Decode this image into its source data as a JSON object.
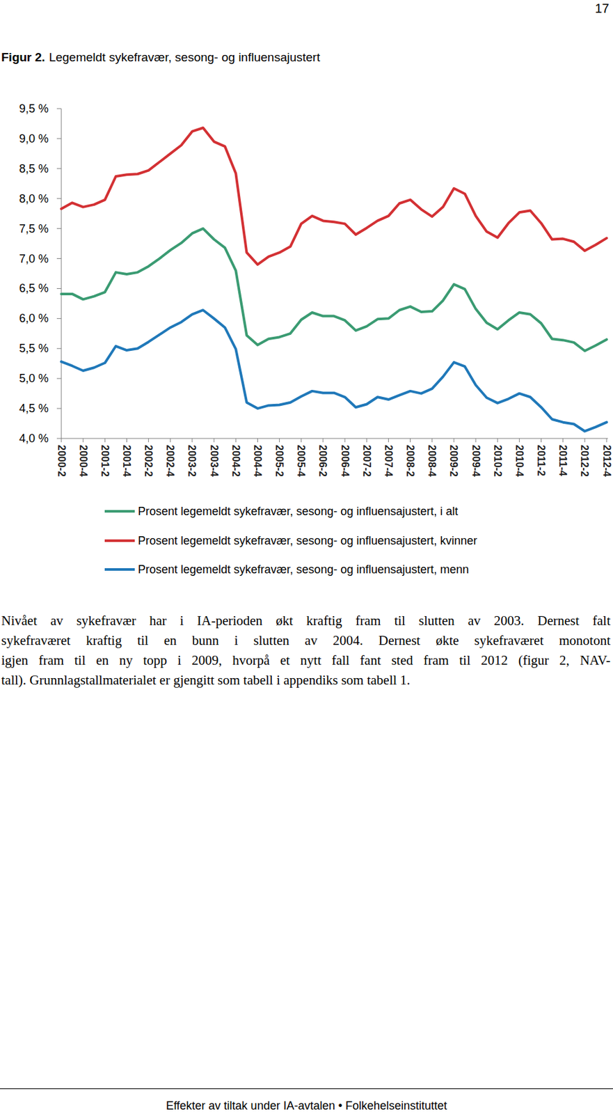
{
  "page": {
    "number": "17"
  },
  "figure": {
    "label": "Figur 2."
  },
  "chart_data": {
    "type": "line",
    "title": "Legemeldt sykefravær, sesong- og influensajustert",
    "categories": [
      "2000-2",
      null,
      "2000-4",
      null,
      "2001-2",
      null,
      "2001-4",
      null,
      "2002-2",
      null,
      "2002-4",
      null,
      "2003-2",
      null,
      "2003-4",
      null,
      "2004-2",
      null,
      "2004-4",
      null,
      "2005-2",
      null,
      "2005-4",
      null,
      "2006-2",
      null,
      "2006-4",
      null,
      "2007-2",
      null,
      "2007-4",
      null,
      "2008-2",
      null,
      "2008-4",
      null,
      "2009-2",
      null,
      "2009-4",
      null,
      "2010-2",
      null,
      "2010-4",
      null,
      "2011-2",
      null,
      "2011-4",
      null,
      "2012-2",
      null,
      "2012-4"
    ],
    "series": [
      {
        "name": "Prosent legemeldt sykefravær, sesong- og influensajustert, i alt",
        "color": "#3a9b72",
        "values": [
          6.41,
          6.41,
          6.32,
          6.37,
          6.44,
          6.77,
          6.74,
          6.77,
          6.87,
          7.0,
          7.14,
          7.26,
          7.42,
          7.5,
          7.32,
          7.18,
          6.8,
          5.72,
          5.56,
          5.66,
          5.69,
          5.75,
          5.98,
          6.1,
          6.04,
          6.04,
          5.97,
          5.8,
          5.87,
          5.99,
          6.0,
          6.14,
          6.2,
          6.11,
          6.12,
          6.3,
          6.57,
          6.49,
          6.16,
          5.93,
          5.82,
          5.97,
          6.1,
          6.07,
          5.92,
          5.66,
          5.64,
          5.6,
          5.46,
          5.55,
          5.65
        ]
      },
      {
        "name": "Prosent legemeldt sykefravær, sesong- og influensajustert, kvinner",
        "color": "#d33033",
        "values": [
          7.83,
          7.93,
          7.86,
          7.9,
          7.98,
          8.37,
          8.4,
          8.41,
          8.47,
          8.61,
          8.75,
          8.89,
          9.12,
          9.18,
          8.95,
          8.87,
          8.42,
          7.1,
          6.9,
          7.03,
          7.1,
          7.2,
          7.58,
          7.71,
          7.63,
          7.61,
          7.58,
          7.4,
          7.51,
          7.63,
          7.71,
          7.92,
          7.98,
          7.82,
          7.7,
          7.86,
          8.17,
          8.08,
          7.71,
          7.45,
          7.35,
          7.59,
          7.77,
          7.8,
          7.59,
          7.32,
          7.33,
          7.28,
          7.13,
          7.23,
          7.34
        ]
      },
      {
        "name": "Prosent legemeldt sykefravær, sesong- og influensajustert, menn",
        "color": "#1f78b9",
        "values": [
          5.28,
          5.21,
          5.13,
          5.18,
          5.26,
          5.54,
          5.47,
          5.5,
          5.61,
          5.73,
          5.85,
          5.94,
          6.07,
          6.14,
          6.0,
          5.85,
          5.49,
          4.6,
          4.5,
          4.55,
          4.56,
          4.6,
          4.7,
          4.79,
          4.76,
          4.76,
          4.69,
          4.52,
          4.57,
          4.69,
          4.65,
          4.72,
          4.79,
          4.75,
          4.83,
          5.03,
          5.27,
          5.2,
          4.89,
          4.68,
          4.59,
          4.66,
          4.75,
          4.69,
          4.52,
          4.32,
          4.27,
          4.24,
          4.12,
          4.19,
          4.27
        ]
      }
    ],
    "ylim": [
      4,
      9.5
    ],
    "yticks": [
      {
        "value": 4,
        "label": "4,0 %"
      },
      {
        "value": 4.5,
        "label": "4,5 %"
      },
      {
        "value": 5,
        "label": "5,0 %"
      },
      {
        "value": 5.5,
        "label": "5,5 %"
      },
      {
        "value": 6,
        "label": "6,0 %"
      },
      {
        "value": 6.5,
        "label": "6,5 %"
      },
      {
        "value": 7,
        "label": "7,0 %"
      },
      {
        "value": 7.5,
        "label": "7,5 %"
      },
      {
        "value": 8,
        "label": "8,0 %"
      },
      {
        "value": 8.5,
        "label": "8,5 %"
      },
      {
        "value": 9,
        "label": "9,0 %"
      },
      {
        "value": 9.5,
        "label": "9,5 %"
      }
    ],
    "grid": false,
    "legend": "bottom"
  },
  "paragraph": {
    "lines": [
      "Nivået av sykefravær har i IA-perioden økt kraftig fram til slutten av 2003. Dernest falt",
      "sykefraværet kraftig til en bunn i slutten av 2004. Dernest økte sykefraværet monotont",
      "igjen fram til en ny topp i 2009, hvorpå et nytt fall fant sted fram til 2012 (figur 2, NAV-",
      "tall). Grunnlagstallmaterialet er gjengitt som tabell i appendiks som tabell 1."
    ]
  },
  "footer": {
    "text": "Effekter av tiltak under IA-avtalen • Folkehelseinstituttet"
  }
}
